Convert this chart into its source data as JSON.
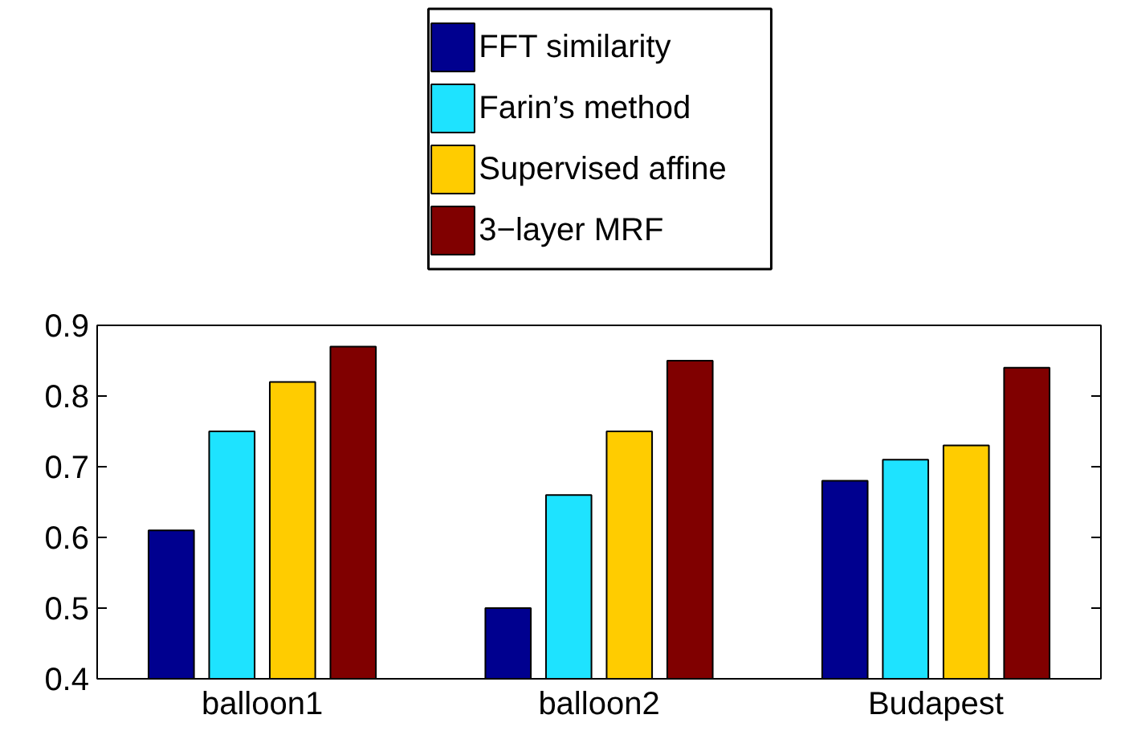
{
  "chart_data": {
    "type": "bar",
    "categories": [
      "balloon1",
      "balloon2",
      "Budapest"
    ],
    "series": [
      {
        "name": "FFT similarity",
        "color": "#00008f",
        "values": [
          0.61,
          0.5,
          0.68
        ]
      },
      {
        "name": "Farin’s method",
        "color": "#1ee3ff",
        "values": [
          0.75,
          0.66,
          0.71
        ]
      },
      {
        "name": "Supervised affine",
        "color": "#ffcc00",
        "values": [
          0.82,
          0.75,
          0.73
        ]
      },
      {
        "name": " 3−layer MRF",
        "color": "#800000",
        "values": [
          0.87,
          0.85,
          0.84
        ]
      }
    ],
    "ylim": [
      0.4,
      0.9
    ],
    "yticks": [
      0.4,
      0.5,
      0.6,
      0.7,
      0.8,
      0.9
    ],
    "grid": false,
    "legend": "top"
  }
}
